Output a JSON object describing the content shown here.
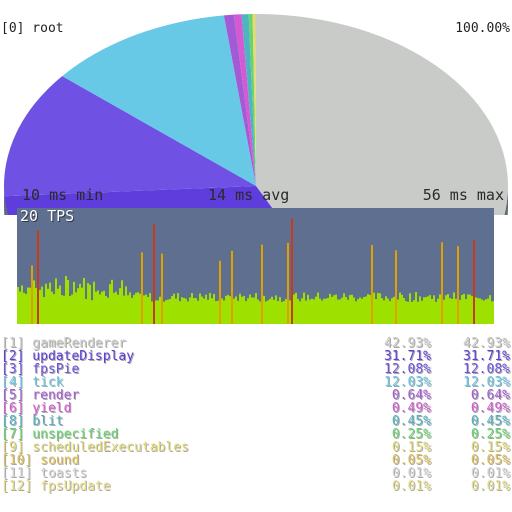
{
  "root": {
    "label": "[0] root",
    "percent": "100.00%"
  },
  "pie": {
    "segments": [
      {
        "name": "gameRenderer",
        "value": 42.93,
        "color": "#c9cbc8"
      },
      {
        "name": "updateDisplay",
        "value": 31.71,
        "color": "#5e3ddc"
      },
      {
        "name": "fpsPie",
        "value": 12.08,
        "color": "#6f52e3"
      },
      {
        "name": "tick",
        "value": 12.03,
        "color": "#68c9e6"
      },
      {
        "name": "render",
        "value": 0.64,
        "color": "#a35bd5"
      },
      {
        "name": "yield",
        "value": 0.49,
        "color": "#d35ad2"
      },
      {
        "name": "blit",
        "value": 0.45,
        "color": "#4fb4c2"
      },
      {
        "name": "unspecified",
        "value": 0.25,
        "color": "#65d56c"
      },
      {
        "name": "scheduledExecutables",
        "value": 0.15,
        "color": "#e3dc74"
      },
      {
        "name": "sound",
        "value": 0.05,
        "color": "#e0c05a"
      },
      {
        "name": "toasts",
        "value": 0.01,
        "color": "#d9d9d9"
      },
      {
        "name": "fpsUpdate",
        "value": 0.01,
        "color": "#e8e08a"
      }
    ]
  },
  "stats": {
    "min": "10 ms min",
    "avg": "14 ms avg",
    "max": "56 ms max"
  },
  "graph": {
    "tps_label": "20 TPS",
    "colors": {
      "background": "#5f6f8f",
      "normal": "#9ee000",
      "warn": "#e0a000",
      "bad": "#c83a1a"
    }
  },
  "entries": [
    {
      "index": "[1]",
      "name": "gameRenderer",
      "pct": "42.93%",
      "total": "42.93%",
      "color": "#c9cbc8"
    },
    {
      "index": "[2]",
      "name": "updateDisplay",
      "pct": "31.71%",
      "total": "31.71%",
      "color": "#5e3ddc"
    },
    {
      "index": "[3]",
      "name": "fpsPie",
      "pct": "12.08%",
      "total": "12.08%",
      "color": "#6f52e3"
    },
    {
      "index": "[4]",
      "name": "tick",
      "pct": "12.03%",
      "total": "12.03%",
      "color": "#68c9e6"
    },
    {
      "index": "[5]",
      "name": "render",
      "pct": "0.64%",
      "total": "0.64%",
      "color": "#a35bd5"
    },
    {
      "index": "[6]",
      "name": "yield",
      "pct": "0.49%",
      "total": "0.49%",
      "color": "#d35ad2"
    },
    {
      "index": "[8]",
      "name": "blit",
      "pct": "0.45%",
      "total": "0.45%",
      "color": "#4fb4c2"
    },
    {
      "index": "[7]",
      "name": "unspecified",
      "pct": "0.25%",
      "total": "0.25%",
      "color": "#65d56c"
    },
    {
      "index": "[9]",
      "name": "scheduledExecutables",
      "pct": "0.15%",
      "total": "0.15%",
      "color": "#e3dc74"
    },
    {
      "index": "[10]",
      "name": "sound",
      "pct": "0.05%",
      "total": "0.05%",
      "color": "#e0c05a"
    },
    {
      "index": "[11]",
      "name": "toasts",
      "pct": "0.01%",
      "total": "0.01%",
      "color": "#d9d9d9"
    },
    {
      "index": "[12]",
      "name": "fpsUpdate",
      "pct": "0.01%",
      "total": "0.01%",
      "color": "#e8e08a"
    }
  ]
}
